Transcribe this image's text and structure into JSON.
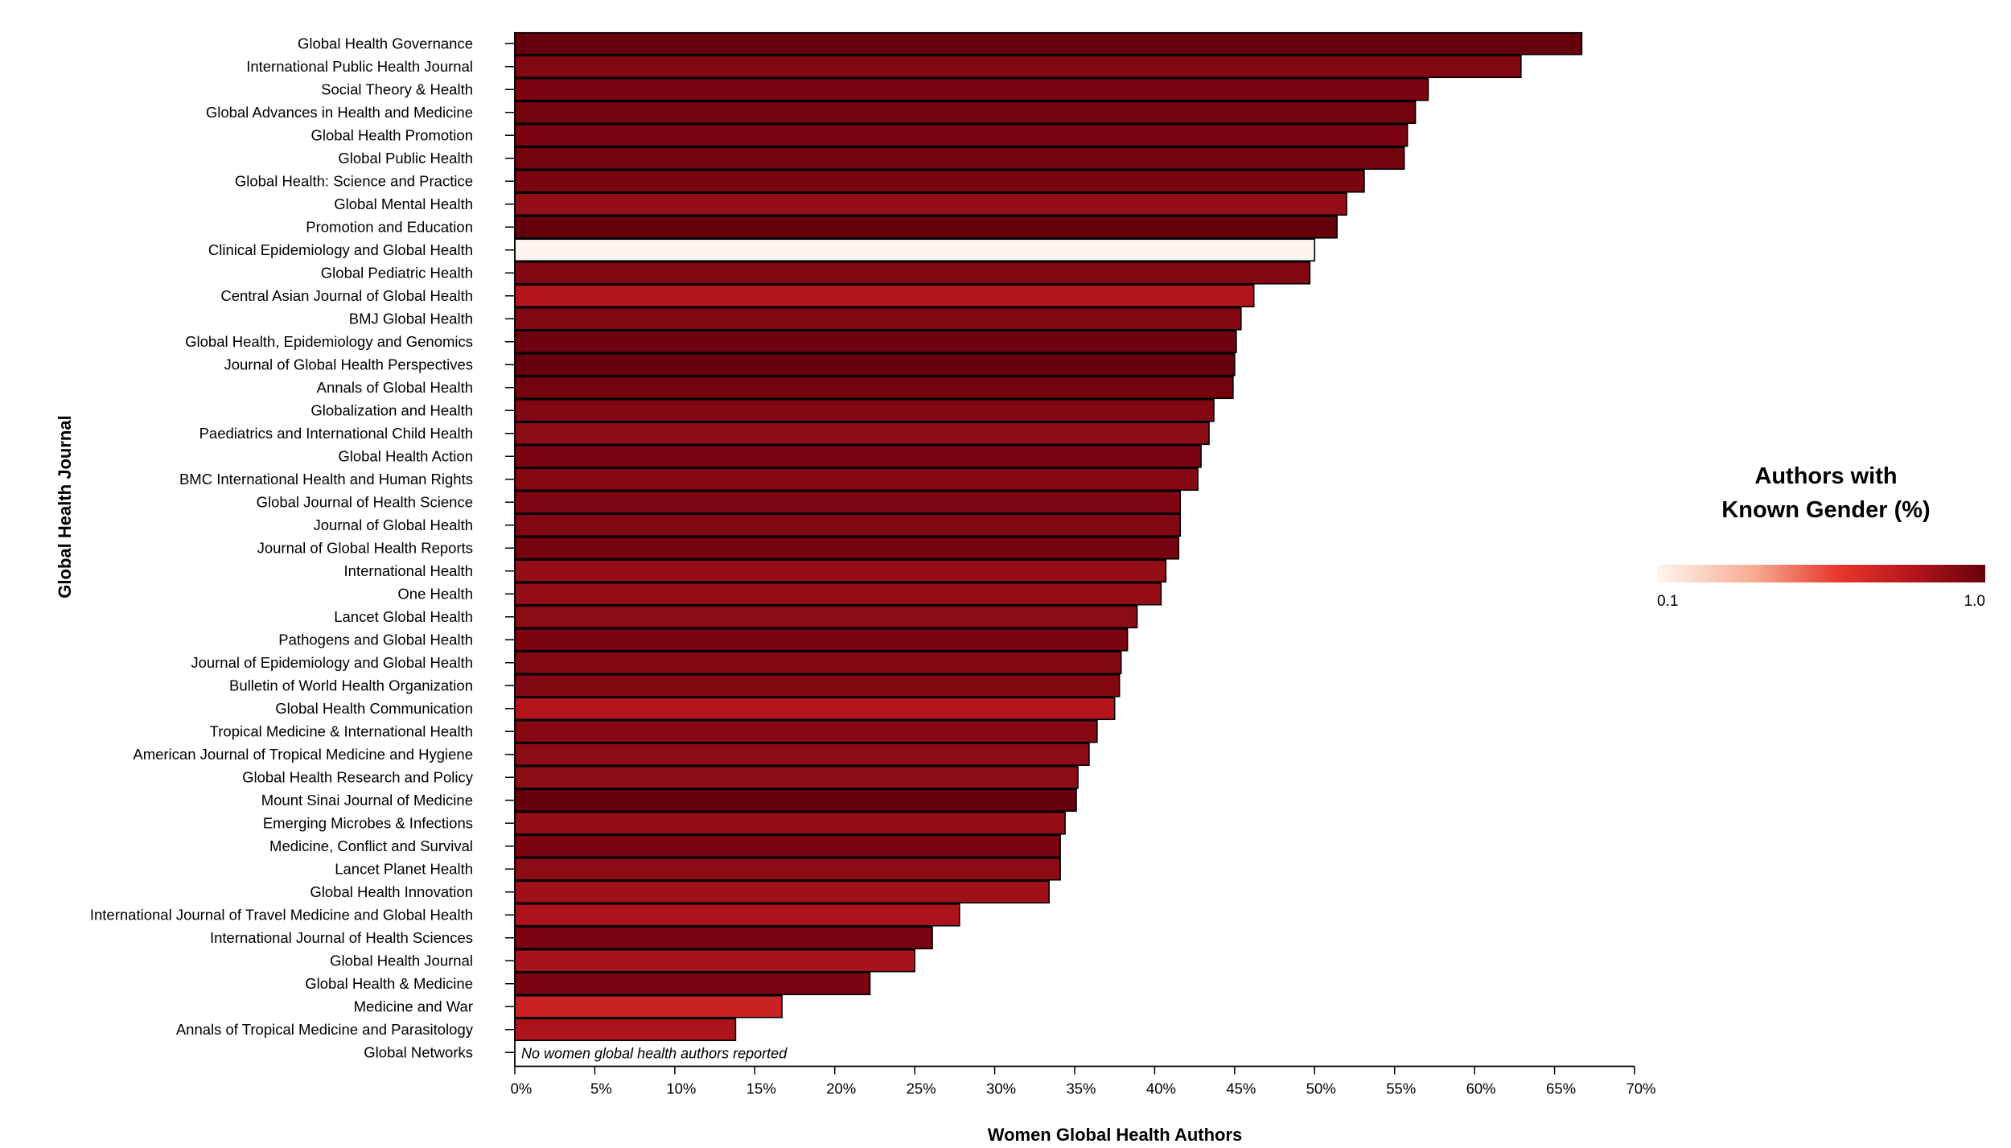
{
  "chart_data": {
    "type": "bar",
    "orientation": "horizontal",
    "xlabel": "Women Global Health Authors",
    "ylabel": "Global Health Journal",
    "xlim": [
      0,
      70
    ],
    "xticks": [
      "0%",
      "5%",
      "10%",
      "15%",
      "20%",
      "25%",
      "30%",
      "35%",
      "40%",
      "45%",
      "50%",
      "55%",
      "60%",
      "65%",
      "70%"
    ],
    "grid": false,
    "categories": [
      "Global Health Governance",
      "International Public Health Journal",
      "Social Theory & Health",
      "Global Advances in Health and Medicine",
      "Global Health Promotion",
      "Global Public Health",
      "Global Health: Science and Practice",
      "Global Mental Health",
      "Promotion and Education",
      "Clinical Epidemiology and Global Health",
      "Global Pediatric Health",
      "Central Asian Journal of Global Health",
      "BMJ Global Health",
      "Global Health, Epidemiology and Genomics",
      "Journal of Global Health Perspectives",
      "Annals of Global Health",
      "Globalization and Health",
      "Paediatrics and International Child Health",
      "Global Health Action",
      "BMC International Health and Human Rights",
      "Global Journal of Health Science",
      "Journal of Global Health",
      "Journal of Global Health Reports",
      "International Health",
      "One Health",
      "Lancet Global Health",
      "Pathogens and Global Health",
      "Journal of Epidemiology and Global Health",
      "Bulletin of World Health Organization",
      "Global Health Communication",
      "Tropical Medicine & International Health",
      "American Journal of Tropical Medicine and Hygiene",
      "Global Health Research and Policy",
      "Mount Sinai Journal of Medicine",
      "Emerging Microbes & Infections",
      "Medicine, Conflict and Survival",
      "Lancet Planet Health",
      "Global Health Innovation",
      "International Journal of Travel Medicine and Global Health",
      "International Journal of Health Sciences",
      "Global Health Journal",
      "Global Health & Medicine",
      "Medicine and War",
      "Annals of Tropical Medicine and Parasitology",
      "Global Networks"
    ],
    "values": [
      66.7,
      62.9,
      57.1,
      56.3,
      55.8,
      55.6,
      53.1,
      52.0,
      51.4,
      50.0,
      49.7,
      46.2,
      45.4,
      45.1,
      45.0,
      44.9,
      43.7,
      43.4,
      42.9,
      42.7,
      41.6,
      41.6,
      41.5,
      40.7,
      40.4,
      38.9,
      38.3,
      37.9,
      37.8,
      37.5,
      36.4,
      35.9,
      35.2,
      35.1,
      34.4,
      34.1,
      34.1,
      33.4,
      27.8,
      26.1,
      25.0,
      22.2,
      16.7,
      13.8,
      0
    ],
    "known_gender": [
      1.0,
      0.93,
      0.95,
      0.97,
      0.95,
      0.97,
      0.95,
      0.88,
      1.0,
      0.1,
      0.93,
      0.8,
      0.93,
      0.98,
      1.0,
      0.97,
      0.93,
      0.9,
      0.95,
      0.92,
      0.94,
      0.93,
      0.96,
      0.88,
      0.88,
      0.9,
      0.95,
      0.93,
      0.93,
      0.8,
      0.92,
      0.9,
      0.9,
      1.0,
      0.88,
      0.95,
      0.9,
      0.85,
      0.82,
      0.95,
      0.83,
      0.95,
      0.72,
      0.82,
      0.9
    ],
    "annotations": [
      {
        "category": "Global Networks",
        "text": "No women global health authors reported"
      }
    ],
    "legend": {
      "title_line1": "Authors with",
      "title_line2": "Known Gender (%)",
      "min_label": "0.1",
      "max_label": "1.0",
      "min": 0.1,
      "max": 1.0,
      "colors": [
        "#fff5f0",
        "#f7a98f",
        "#e8372d",
        "#b3151c",
        "#67000d"
      ],
      "placement": "right"
    }
  }
}
